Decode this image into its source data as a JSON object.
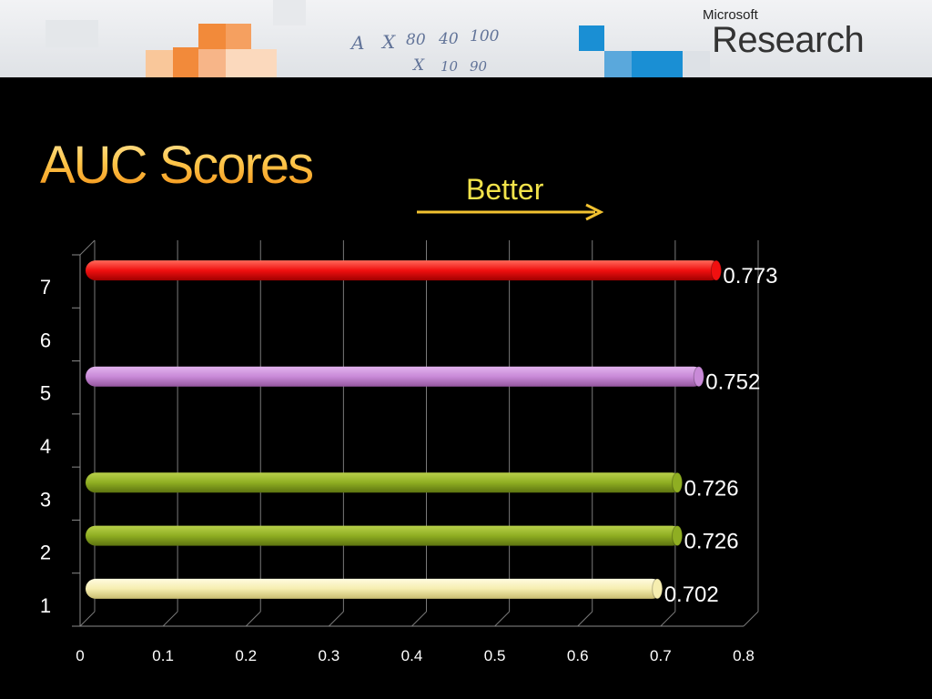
{
  "header": {
    "logo_line1": "Microsoft",
    "logo_line2": "Research",
    "whiteboard_notes": [
      "A",
      "X",
      "80",
      "40",
      "100",
      "X",
      "10",
      "90"
    ]
  },
  "slide": {
    "title": "AUC Scores",
    "arrow_label": "Better"
  },
  "chart_data": {
    "type": "bar",
    "orientation": "horizontal",
    "title": "AUC Scores",
    "xlabel": "",
    "ylabel": "",
    "xlim": [
      0,
      0.8
    ],
    "xticks": [
      "0",
      "0.1",
      "0.2",
      "0.3",
      "0.4",
      "0.5",
      "0.6",
      "0.7",
      "0.8"
    ],
    "categories": [
      "1",
      "2",
      "3",
      "4",
      "5",
      "6",
      "7"
    ],
    "values": [
      0.702,
      0.726,
      0.726,
      null,
      0.752,
      null,
      0.773
    ],
    "value_labels": [
      "0.702",
      "0.726",
      "0.726",
      "",
      "0.752",
      "",
      "0.773"
    ],
    "colors": [
      "#f6eeb0",
      "#8fae22",
      "#8fae22",
      "",
      "#c98ad8",
      "",
      "#f01010"
    ],
    "grid": true,
    "legend": false
  }
}
